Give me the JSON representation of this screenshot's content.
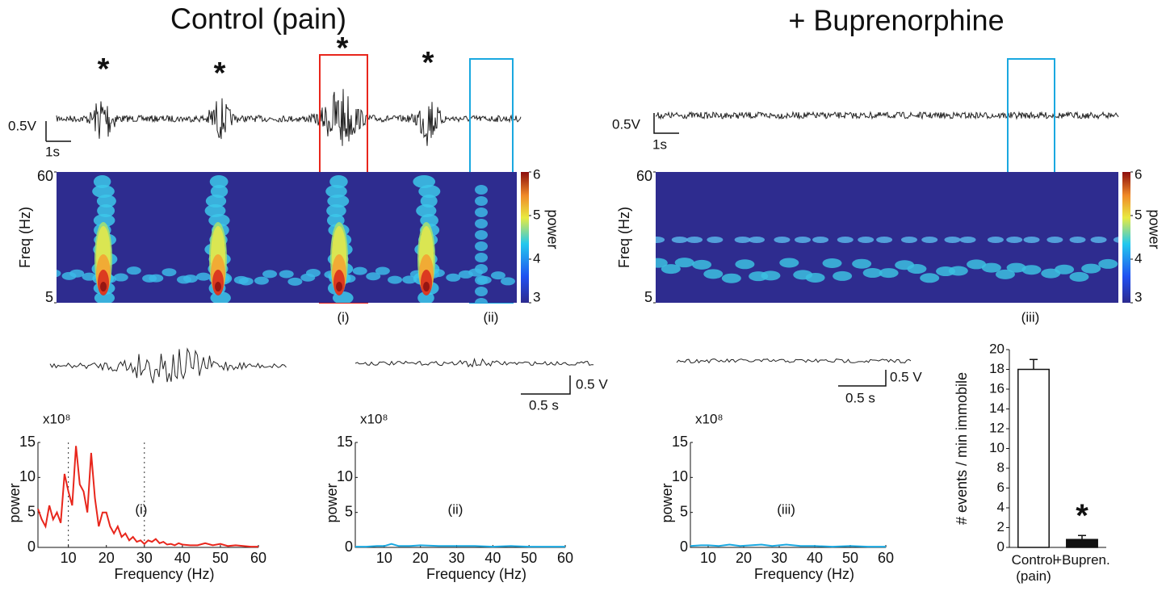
{
  "figure": {
    "titles": [
      "Control (pain)",
      "+ Buprenorphine"
    ],
    "asterisks": [
      "*",
      "*",
      "*",
      "*"
    ],
    "scale_bars": [
      {
        "amplitude": "0.5V",
        "time": "1s"
      },
      {
        "amplitude": "0.5V",
        "time": "1s"
      },
      {
        "amplitude": "0.5 V",
        "time": "0.5 s"
      },
      {
        "amplitude": "0.5 V",
        "time": "0.5 s"
      }
    ],
    "window_labels": [
      "(i)",
      "(ii)",
      "(iii)"
    ]
  },
  "chart_data": [
    {
      "type": "heatmap",
      "ylabel": "Freq (Hz)",
      "ylim": [
        5,
        60
      ],
      "yticks": [
        5,
        60
      ],
      "clim": [
        3,
        6
      ],
      "cticks": [
        3,
        4,
        5,
        6
      ],
      "clabel": "power"
    },
    {
      "type": "heatmap",
      "ylabel": "Freq (Hz)",
      "ylim": [
        5,
        60
      ],
      "yticks": [
        5,
        60
      ],
      "clim": [
        3,
        6
      ],
      "cticks": [
        3,
        4,
        5,
        6
      ],
      "clabel": "power"
    },
    {
      "type": "line",
      "xlabel": "Frequency (Hz)",
      "ylabel": "power",
      "y_multiplier": "x10⁸",
      "annotation": "(i)",
      "annotation_color": "#e8261c",
      "xlim": [
        2,
        60
      ],
      "ylim": [
        0,
        15
      ],
      "xticks": [
        10,
        20,
        30,
        40,
        50,
        60
      ],
      "yticks": [
        0,
        5,
        10,
        15
      ],
      "vlines": [
        10,
        30
      ],
      "x": [
        2,
        3,
        4,
        5,
        6,
        7,
        8,
        9,
        10,
        11,
        12,
        13,
        14,
        15,
        16,
        17,
        18,
        19,
        20,
        21,
        22,
        23,
        24,
        25,
        26,
        27,
        28,
        29,
        30,
        31,
        32,
        33,
        34,
        35,
        36,
        37,
        38,
        39,
        40,
        42,
        44,
        46,
        48,
        50,
        52,
        54,
        56,
        58,
        60
      ],
      "series": [
        {
          "name": "(i)",
          "color": "#e8261c",
          "values": [
            5.5,
            4,
            3,
            6,
            4,
            5,
            3.5,
            10.5,
            8,
            6,
            14.5,
            9,
            8,
            5,
            13.5,
            7,
            3,
            5,
            5,
            3,
            2,
            3,
            1.5,
            2,
            1,
            1.5,
            0.8,
            1,
            0.5,
            1,
            0.8,
            1.2,
            0.6,
            0.8,
            0.4,
            0.5,
            0.3,
            0.6,
            0.4,
            0.3,
            0.3,
            0.6,
            0.3,
            0.5,
            0.2,
            0.3,
            0.2,
            0.1,
            0.1
          ]
        }
      ]
    },
    {
      "type": "line",
      "xlabel": "Frequency (Hz)",
      "ylabel": "power",
      "y_multiplier": "x10⁸",
      "annotation": "(ii)",
      "annotation_color": "#1aa8e0",
      "xlim": [
        2,
        60
      ],
      "ylim": [
        0,
        15
      ],
      "xticks": [
        10,
        20,
        30,
        40,
        50,
        60
      ],
      "yticks": [
        0,
        5,
        10,
        15
      ],
      "x": [
        2,
        5,
        8,
        10,
        12,
        14,
        17,
        20,
        25,
        30,
        35,
        40,
        45,
        50,
        55,
        60
      ],
      "series": [
        {
          "name": "(ii)",
          "color": "#1aa8e0",
          "values": [
            0.1,
            0.1,
            0.2,
            0.2,
            0.5,
            0.2,
            0.2,
            0.3,
            0.2,
            0.2,
            0.2,
            0.1,
            0.2,
            0.1,
            0.1,
            0.1
          ]
        }
      ]
    },
    {
      "type": "line",
      "xlabel": "Frequency (Hz)",
      "ylabel": "power",
      "y_multiplier": "x10⁸",
      "annotation": "(iii)",
      "annotation_color": "#1aa8e0",
      "xlim": [
        5,
        60
      ],
      "ylim": [
        0,
        15
      ],
      "xticks": [
        10,
        20,
        30,
        40,
        50,
        60
      ],
      "yticks": [
        0,
        5,
        10,
        15
      ],
      "x": [
        5,
        8,
        10,
        13,
        16,
        19,
        22,
        25,
        28,
        32,
        36,
        40,
        45,
        50,
        55,
        60
      ],
      "series": [
        {
          "name": "(iii)",
          "color": "#1aa8e0",
          "values": [
            0.2,
            0.3,
            0.3,
            0.2,
            0.4,
            0.2,
            0.3,
            0.4,
            0.2,
            0.4,
            0.2,
            0.2,
            0.1,
            0.2,
            0.1,
            0.1
          ]
        }
      ]
    },
    {
      "type": "bar",
      "ylabel": "# events / min immobile",
      "annotation": "*",
      "categories": [
        "Control (pain)",
        "+Bupren."
      ],
      "values": [
        18,
        0.8
      ],
      "errors": [
        1,
        0.4
      ],
      "colors": [
        "#ffffff",
        "#111111"
      ],
      "ylim": [
        0,
        20
      ],
      "yticks": [
        0,
        2,
        4,
        6,
        8,
        10,
        12,
        14,
        16,
        18,
        20
      ]
    }
  ]
}
